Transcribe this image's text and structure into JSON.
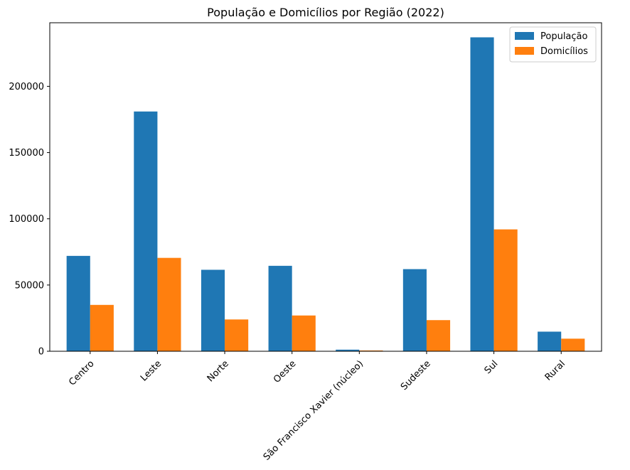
{
  "chart_data": {
    "type": "bar",
    "title": "População e Domicílios por Região (2022)",
    "xlabel": "",
    "ylabel": "",
    "categories": [
      "Centro",
      "Leste",
      "Norte",
      "Oeste",
      "São Francisco Xavier (núcleo)",
      "Sudeste",
      "Sul",
      "Rural"
    ],
    "series": [
      {
        "name": "População",
        "color": "#1f77b4",
        "values": [
          72000,
          181000,
          61500,
          64500,
          1200,
          62000,
          237000,
          14800
        ]
      },
      {
        "name": "Domicílios",
        "color": "#ff7f0e",
        "values": [
          35000,
          70500,
          24000,
          27000,
          600,
          23500,
          92000,
          9500
        ]
      }
    ],
    "ylim": [
      0,
      248000
    ],
    "yticks": [
      0,
      50000,
      100000,
      150000,
      200000
    ],
    "ytick_labels": [
      "0",
      "50000",
      "100000",
      "150000",
      "200000"
    ],
    "legend_position": "top-right",
    "grid": false,
    "x_tick_rotation_deg": 45
  }
}
